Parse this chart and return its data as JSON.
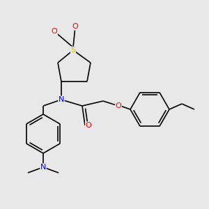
{
  "bg_color": "#e8e8e8",
  "atom_colors": {
    "N": "#0000ff",
    "O": "#ff0000",
    "S": "#cccc00"
  },
  "bond_color": "#000000",
  "bond_width": 1.2,
  "figsize": [
    3.0,
    3.0
  ],
  "dpi": 100
}
